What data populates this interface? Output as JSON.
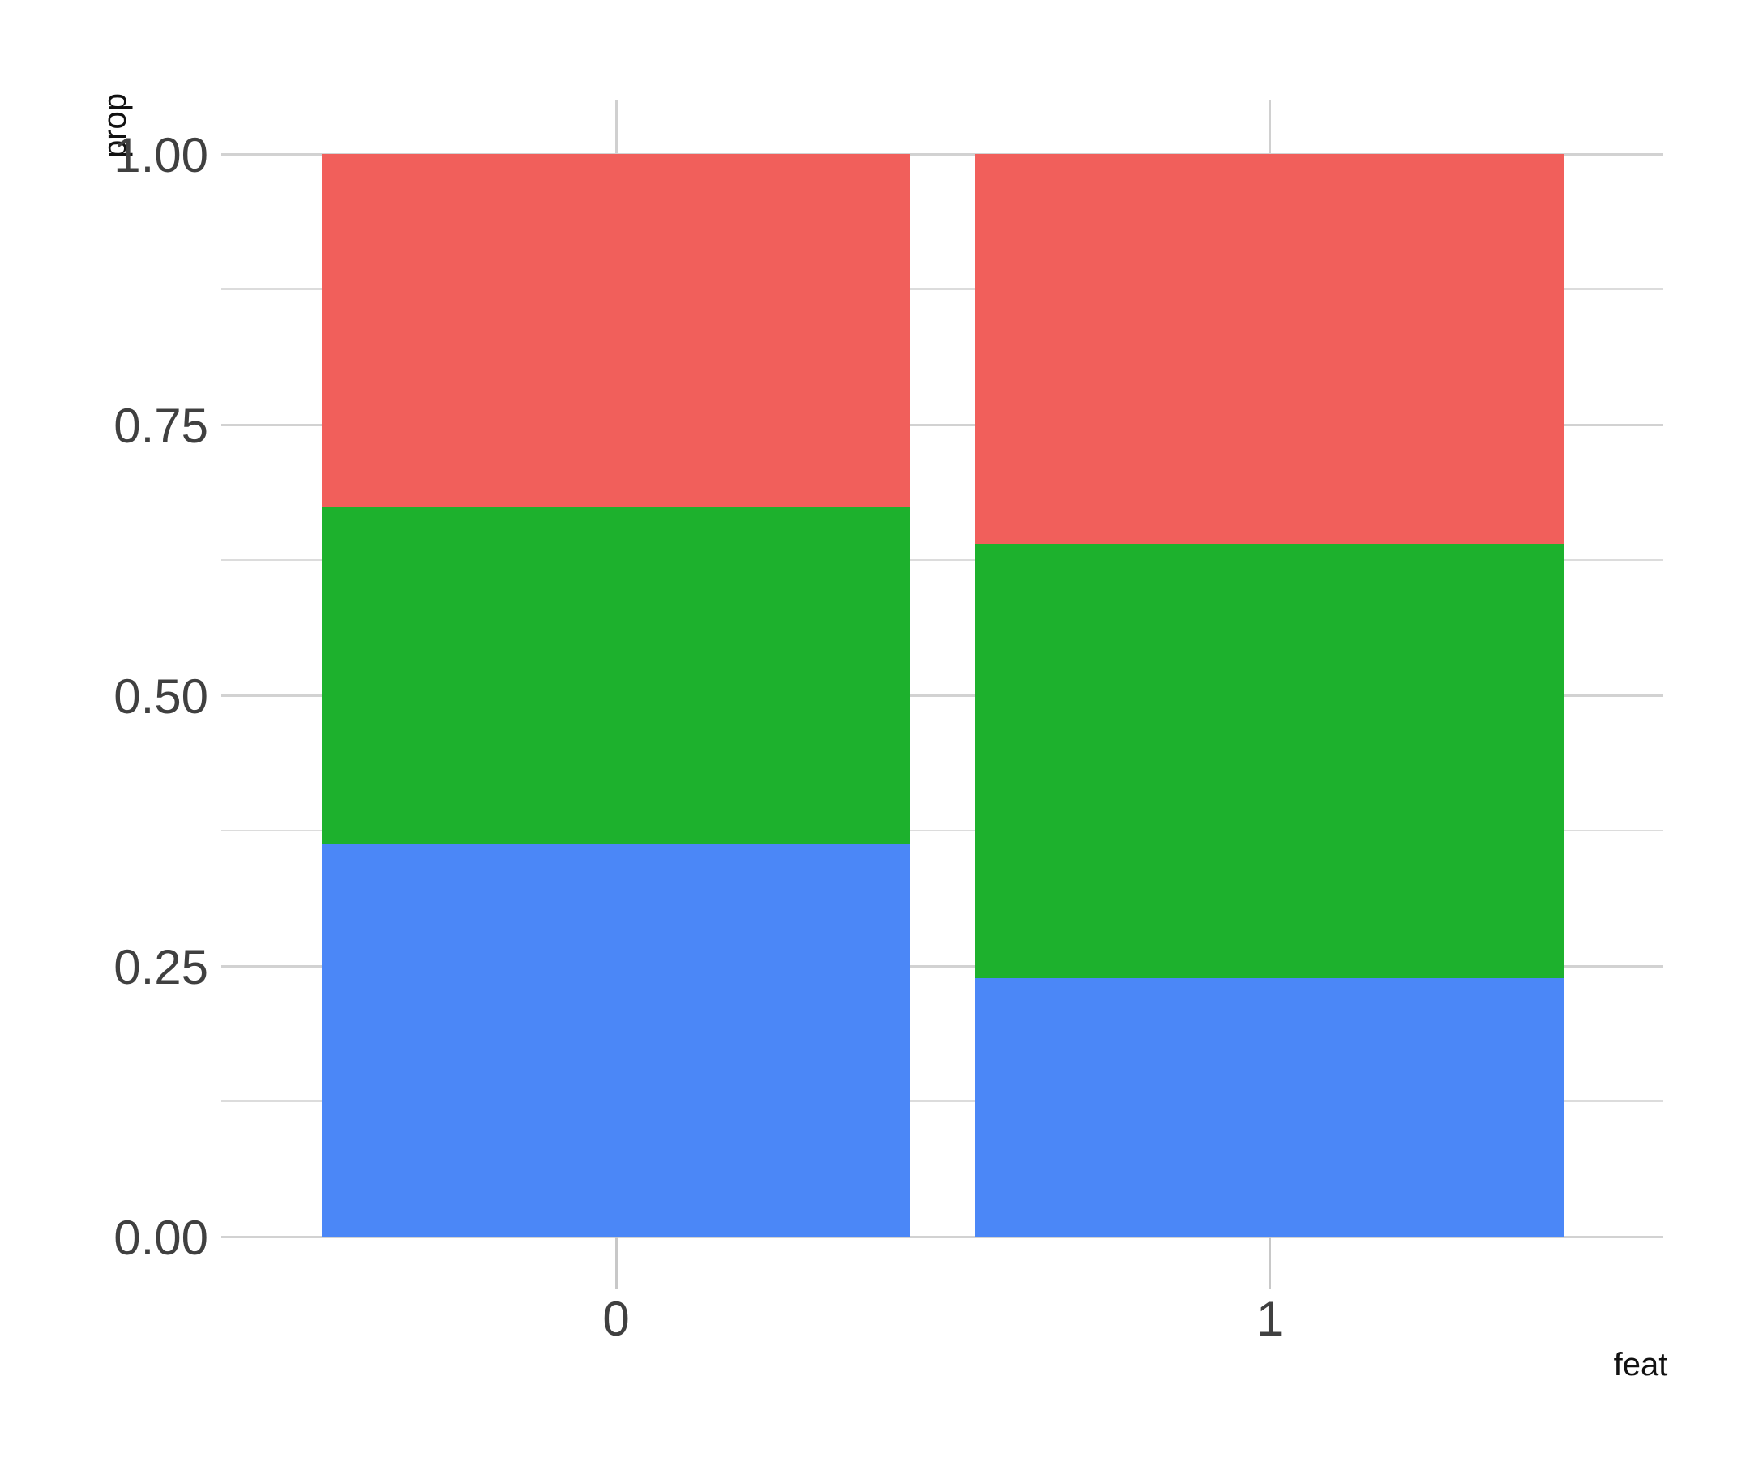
{
  "chart_data": {
    "type": "bar",
    "subtype": "stacked-proportion",
    "title": "",
    "xlabel": "feat",
    "ylabel": "prop",
    "categories": [
      "0",
      "1"
    ],
    "stack_order_bottom_to_top": [
      "blue",
      "green",
      "red"
    ],
    "series": [
      {
        "name": "blue",
        "color": "#4B87F7",
        "values": [
          0.362,
          0.239
        ]
      },
      {
        "name": "green",
        "color": "#1DB12D",
        "values": [
          0.312,
          0.401
        ]
      },
      {
        "name": "red",
        "color": "#F15F5B",
        "values": [
          0.326,
          0.36
        ]
      }
    ],
    "ylim": [
      0,
      1
    ],
    "y_major_tick_labels": [
      "0.00",
      "0.25",
      "0.50",
      "0.75",
      "1.00"
    ],
    "y_major_tick_values": [
      0,
      0.25,
      0.5,
      0.75,
      1.0
    ],
    "y_minor_tick_values": [
      0.125,
      0.375,
      0.625,
      0.875
    ],
    "grid": "major+minor horizontal, vertical at category centers",
    "legend": "none",
    "background_color": "#ffffff",
    "grid_major_color": "#d2d2d2",
    "grid_minor_color": "#dcdcdc",
    "axis_tick_color": "#c8c8c8",
    "tick_label_color": "#404040",
    "axis_title_color": "#111111"
  }
}
